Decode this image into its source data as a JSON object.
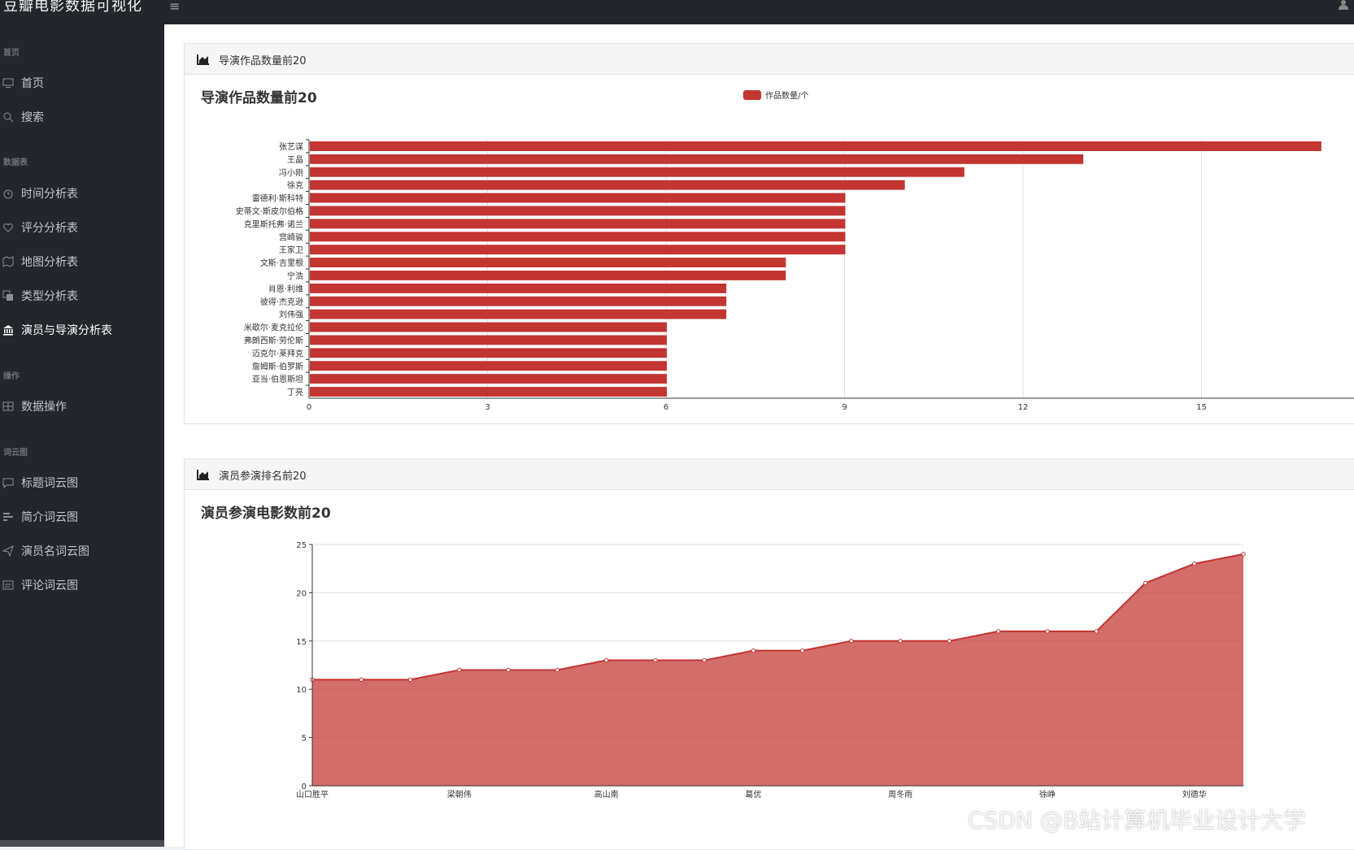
{
  "app": {
    "title": "豆瓣电影数据可视化",
    "menu_toggle": "≡"
  },
  "sidebar": {
    "sections": [
      {
        "label": "首页",
        "items": [
          {
            "label": "首页",
            "icon": "monitor-icon"
          },
          {
            "label": "搜索",
            "icon": "search-icon"
          }
        ]
      },
      {
        "label": "数据表",
        "items": [
          {
            "label": "时间分析表",
            "icon": "clock-icon"
          },
          {
            "label": "评分分析表",
            "icon": "heart-icon"
          },
          {
            "label": "地图分析表",
            "icon": "map-icon"
          },
          {
            "label": "类型分析表",
            "icon": "copy-icon"
          },
          {
            "label": "演员与导演分析表",
            "icon": "bank-icon"
          }
        ]
      },
      {
        "label": "操作",
        "items": [
          {
            "label": "数据操作",
            "icon": "table-icon"
          }
        ]
      },
      {
        "label": "词云图",
        "items": [
          {
            "label": "标题词云图",
            "icon": "chat-icon"
          },
          {
            "label": "简介词云图",
            "icon": "bars-icon"
          },
          {
            "label": "演员名词云图",
            "icon": "send-icon"
          },
          {
            "label": "评论词云图",
            "icon": "message-icon"
          }
        ]
      }
    ]
  },
  "panel1": {
    "header": "导演作品数量前20"
  },
  "panel2": {
    "header": "演员参演排名前20"
  },
  "chart_data": [
    {
      "type": "bar",
      "orientation": "horizontal",
      "title": "导演作品数量前20",
      "legend": "作品数量/个",
      "color": "#c23531",
      "categories": [
        "张艺谋",
        "王晶",
        "冯小刚",
        "徐克",
        "雷德利·斯科特",
        "史蒂文·斯皮尔伯格",
        "克里斯托弗·诺兰",
        "宫崎骏",
        "王家卫",
        "文斯·吉里根",
        "宁浩",
        "肖恩·利维",
        "彼得·杰克逊",
        "刘伟强",
        "米歇尔·麦克拉伦",
        "弗朗西斯·劳伦斯",
        "迈克尔·莱拜克",
        "詹姆斯·伯罗斯",
        "亚当·伯恩斯坦",
        "丁亮"
      ],
      "values": [
        17,
        13,
        11,
        10,
        9,
        9,
        9,
        9,
        9,
        8,
        8,
        7,
        7,
        7,
        6,
        6,
        6,
        6,
        6,
        6
      ],
      "xticks": [
        0,
        3,
        6,
        9,
        12,
        15
      ],
      "xlim": [
        0,
        18
      ]
    },
    {
      "type": "area",
      "title": "演员参演电影数前20",
      "color": "#c23531",
      "x": [
        "山口胜平",
        "",
        "",
        "梁朝伟",
        "",
        "",
        "高山南",
        "",
        "",
        "葛优",
        "",
        "",
        "周冬雨",
        "",
        "",
        "徐峥",
        "",
        "",
        "刘德华",
        ""
      ],
      "values": [
        11,
        11,
        11,
        12,
        12,
        12,
        13,
        13,
        13,
        14,
        14,
        15,
        15,
        15,
        16,
        16,
        16,
        21,
        23,
        24
      ],
      "yticks": [
        0,
        5,
        10,
        15,
        20,
        25
      ],
      "ylim": [
        0,
        25
      ]
    }
  ],
  "watermark": "CSDN @B站计算机毕业设计大学"
}
